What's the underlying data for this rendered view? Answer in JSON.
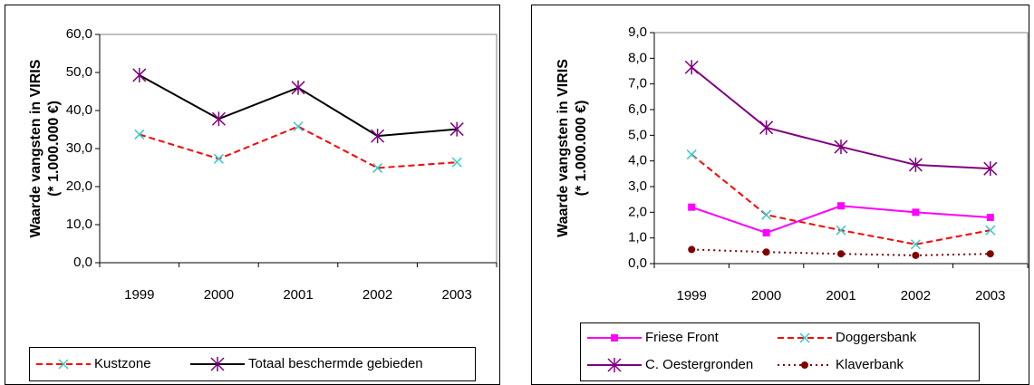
{
  "chart_data": [
    {
      "type": "line",
      "ylabel": [
        "Waarde vangsten in VIRIS",
        "(* 1.000.000 €)"
      ],
      "categories": [
        "1999",
        "2000",
        "2001",
        "2002",
        "2003"
      ],
      "ylim": [
        0,
        60
      ],
      "yticks": [
        {
          "value": 0,
          "label": "0,0"
        },
        {
          "value": 10,
          "label": "10,0"
        },
        {
          "value": 20,
          "label": "20,0"
        },
        {
          "value": 30,
          "label": "30,0"
        },
        {
          "value": 40,
          "label": "40,0"
        },
        {
          "value": 50,
          "label": "50,0"
        },
        {
          "value": 60,
          "label": "60,0"
        }
      ],
      "grid": false,
      "series": [
        {
          "name": "Kustzone",
          "color": "#ff0000",
          "dash": "dashed",
          "marker": "x",
          "marker_color": "#33cccc",
          "values": [
            33.7,
            27.3,
            35.8,
            24.9,
            26.4
          ]
        },
        {
          "name": "Totaal beschermde gebieden",
          "color": "#000000",
          "dash": "solid",
          "marker": "asterisk",
          "marker_color": "#800080",
          "values": [
            49.3,
            37.8,
            46.0,
            33.3,
            35.1
          ]
        }
      ]
    },
    {
      "type": "line",
      "ylabel": [
        "Waarde vangsten in VIRIS",
        "(* 1.000.000 €)"
      ],
      "categories": [
        "1999",
        "2000",
        "2001",
        "2002",
        "2003"
      ],
      "ylim": [
        0,
        9
      ],
      "yticks": [
        {
          "value": 0,
          "label": "0,0"
        },
        {
          "value": 1,
          "label": "1,0"
        },
        {
          "value": 2,
          "label": "2,0"
        },
        {
          "value": 3,
          "label": "3,0"
        },
        {
          "value": 4,
          "label": "4,0"
        },
        {
          "value": 5,
          "label": "5,0"
        },
        {
          "value": 6,
          "label": "6,0"
        },
        {
          "value": 7,
          "label": "7,0"
        },
        {
          "value": 8,
          "label": "8,0"
        },
        {
          "value": 9,
          "label": "9,0"
        }
      ],
      "grid": false,
      "series": [
        {
          "name": "Friese Front",
          "color": "#ff00ff",
          "dash": "solid",
          "marker": "square",
          "marker_color": "#ff00ff",
          "values": [
            2.2,
            1.2,
            2.25,
            2.0,
            1.8
          ]
        },
        {
          "name": "Doggersbank",
          "color": "#ff0000",
          "dash": "dashed",
          "marker": "x",
          "marker_color": "#33cccc",
          "values": [
            4.25,
            1.9,
            1.3,
            0.75,
            1.3
          ]
        },
        {
          "name": "C. Oestergronden",
          "color": "#800080",
          "dash": "solid",
          "marker": "asterisk",
          "marker_color": "#800080",
          "values": [
            7.65,
            5.3,
            4.55,
            3.85,
            3.7
          ]
        },
        {
          "name": "Klaverbank",
          "color": "#800000",
          "dash": "dotted",
          "marker": "circle",
          "marker_color": "#800000",
          "values": [
            0.55,
            0.45,
            0.38,
            0.32,
            0.38
          ]
        }
      ]
    }
  ]
}
